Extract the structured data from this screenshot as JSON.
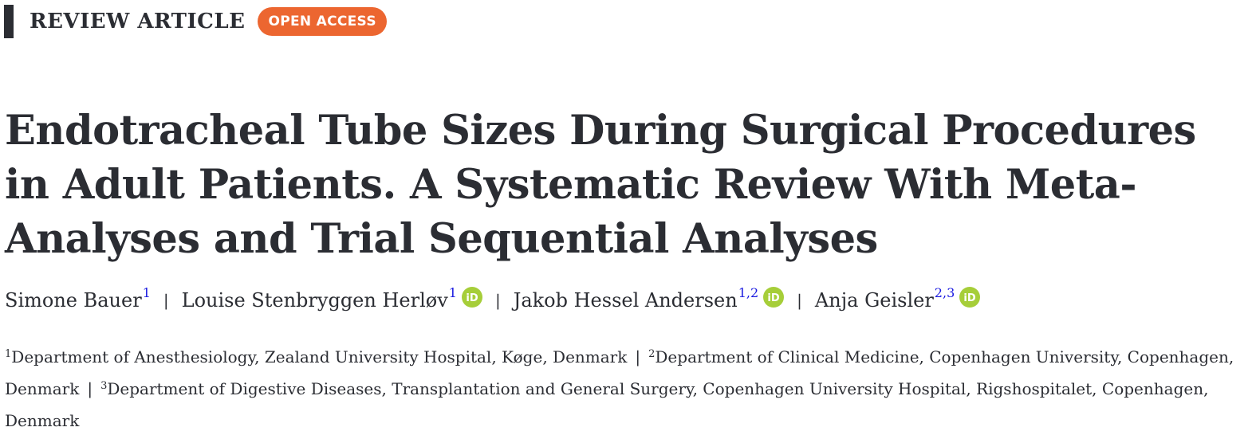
{
  "header": {
    "article_type": "REVIEW ARTICLE",
    "open_access_label": "OPEN ACCESS"
  },
  "title": "Endotracheal Tube Sizes During Surgical Procedures in Adult Patients. A Systematic Review With Meta-Analyses and Trial Sequential Analyses",
  "authors": [
    {
      "name": "Simone Bauer",
      "affil": "1",
      "orcid": false
    },
    {
      "name": "Louise Stenbryggen Herløv",
      "affil": "1",
      "orcid": true
    },
    {
      "name": "Jakob Hessel Andersen",
      "affil": "1,2",
      "orcid": true
    },
    {
      "name": "Anja Geisler",
      "affil": "2,3",
      "orcid": true
    }
  ],
  "separator": "|",
  "affiliations": [
    {
      "num": "1",
      "text": "Department of Anesthesiology, Zealand University Hospital, Køge, Denmark"
    },
    {
      "num": "2",
      "text": "Department of Clinical Medicine, Copenhagen University, Copenhagen, Denmark"
    },
    {
      "num": "3",
      "text": "Department of Digestive Diseases, Transplantation and General Surgery, Copenhagen University Hospital, Rigshospitalet, Copenhagen, Denmark"
    }
  ],
  "colors": {
    "text": "#2b2d33",
    "badge": "#ec6630",
    "affil_link": "#1a1ae0",
    "orcid": "#a6ce39"
  },
  "icons": {
    "orcid": "orcid-icon"
  }
}
